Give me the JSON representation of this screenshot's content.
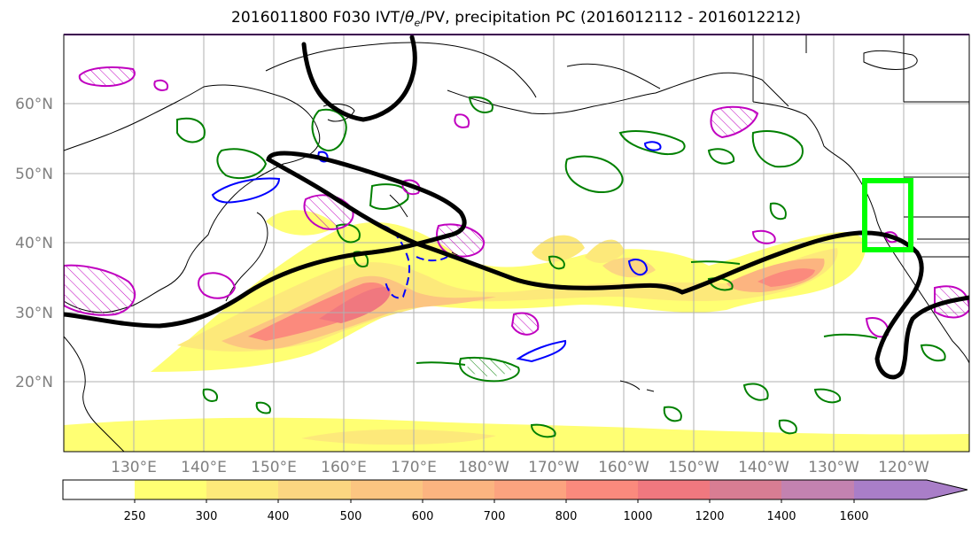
{
  "title": {
    "prefix": "2016011800 F030 IVT/",
    "theta": "θ",
    "theta_sub": "e",
    "suffix": "/PV, precipitation PC (2016012112 - 2016012212)"
  },
  "colors": {
    "land_outline": "#000000",
    "grid": "#b0b0b0",
    "pv_contour": "#000000",
    "theta_green": "#008000",
    "theta_magenta": "#c000c0",
    "theta_blue": "#0000ff",
    "target_box": "#00ff00"
  },
  "map": {
    "lat_labels": [
      "60°N",
      "50°N",
      "40°N",
      "30°N",
      "20°N"
    ],
    "lon_labels": [
      "130°E",
      "140°E",
      "150°E",
      "160°E",
      "170°E",
      "180°W",
      "170°W",
      "160°W",
      "150°W",
      "140°W",
      "130°W",
      "120°W"
    ]
  },
  "colorbar": {
    "ticks": [
      "250",
      "300",
      "400",
      "500",
      "600",
      "700",
      "800",
      "1000",
      "1200",
      "1400",
      "1600"
    ],
    "colors": [
      "#ffff73",
      "#fde97a",
      "#fcd681",
      "#fcc581",
      "#fcb480",
      "#fca37f",
      "#fb8a7d",
      "#f0787f",
      "#d87d93",
      "#c382b0",
      "#a97ec8"
    ]
  }
}
